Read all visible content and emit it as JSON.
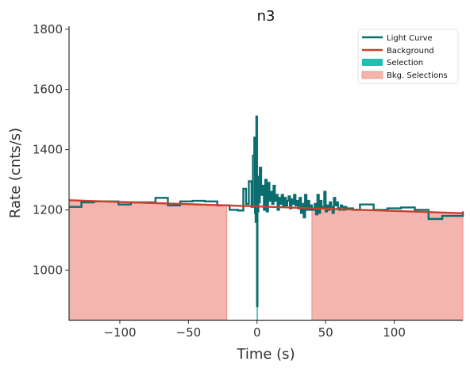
{
  "chart_data": {
    "type": "line",
    "title": "n3",
    "xlabel": "Time (s)",
    "ylabel": "Rate (cnts/s)",
    "xlim": [
      -137,
      150
    ],
    "ylim": [
      835,
      1810
    ],
    "xticks": [
      -100,
      -50,
      0,
      50,
      100
    ],
    "xtick_labels": [
      "−100",
      "−50",
      "0",
      "50",
      "100"
    ],
    "yticks": [
      1000,
      1200,
      1400,
      1600,
      1800
    ],
    "ytick_labels": [
      "1000",
      "1200",
      "1400",
      "1600",
      "1800"
    ],
    "grid": false,
    "legend_placement": "top-right",
    "legend": [
      "Light Curve",
      "Background",
      "Selection",
      "Bkg. Selections"
    ],
    "colors": {
      "light_curve": "#0b6e6e",
      "background": "#c9402c",
      "selection": "#20c0b0",
      "bkg_selection_fill": "#f3b5ae",
      "bkg_selection_edge": "#f08f87",
      "axis": "#333333"
    },
    "series": [
      {
        "name": "Light Curve",
        "kind": "step",
        "x": [
          -137,
          -128,
          -119,
          -110,
          -101,
          -92,
          -83,
          -74,
          -65,
          -56,
          -47,
          -38,
          -29,
          -20,
          -14,
          -10,
          -8,
          -6,
          -4,
          -3,
          -2,
          -1.5,
          -1,
          -0.5,
          0,
          0.3,
          0.6,
          1,
          1.5,
          2,
          3,
          4,
          5,
          6,
          7,
          8,
          9,
          10,
          11,
          12,
          13,
          14,
          15,
          16,
          17,
          18,
          19,
          20,
          21,
          22,
          23,
          24,
          25,
          26,
          27,
          28,
          29,
          30,
          31,
          32,
          33,
          34,
          35,
          36,
          37,
          38,
          39,
          40,
          41,
          42,
          43,
          44,
          45,
          46,
          47,
          48,
          49,
          50,
          51,
          52,
          53,
          54,
          55,
          56,
          57,
          58,
          59,
          60,
          61,
          62,
          63,
          64,
          65,
          70,
          75,
          80,
          85,
          95,
          105,
          115,
          125,
          135,
          150
        ],
        "y": [
          1210,
          1225,
          1228,
          1228,
          1218,
          1225,
          1225,
          1240,
          1215,
          1228,
          1230,
          1228,
          1215,
          1200,
          1198,
          1270,
          1220,
          1295,
          1210,
          1380,
          1440,
          1190,
          1160,
          1510,
          880,
          1310,
          1195,
          1260,
          1225,
          1340,
          1250,
          1280,
          1200,
          1300,
          1195,
          1290,
          1230,
          1260,
          1220,
          1280,
          1230,
          1250,
          1200,
          1240,
          1220,
          1250,
          1210,
          1240,
          1215,
          1230,
          1245,
          1205,
          1235,
          1220,
          1250,
          1215,
          1230,
          1205,
          1240,
          1190,
          1220,
          1175,
          1250,
          1200,
          1230,
          1200,
          1215,
          1200,
          1200,
          1220,
          1185,
          1250,
          1190,
          1230,
          1205,
          1210,
          1260,
          1195,
          1215,
          1200,
          1225,
          1210,
          1190,
          1240,
          1215,
          1225,
          1205,
          1200,
          1215,
          1210,
          1200,
          1210,
          1205,
          1200,
          1218,
          1218,
          1200,
          1205,
          1208,
          1200,
          1170,
          1180,
          1195
        ]
      },
      {
        "name": "Background",
        "kind": "line",
        "x": [
          -137,
          150
        ],
        "y": [
          1232,
          1189
        ]
      }
    ],
    "selection": {
      "name": "Selection",
      "x_range": [
        -0.3,
        0.6
      ]
    },
    "bkg_selections": {
      "name": "Bkg. Selections",
      "ranges": [
        [
          -137,
          -22
        ],
        [
          40,
          150
        ]
      ]
    }
  }
}
